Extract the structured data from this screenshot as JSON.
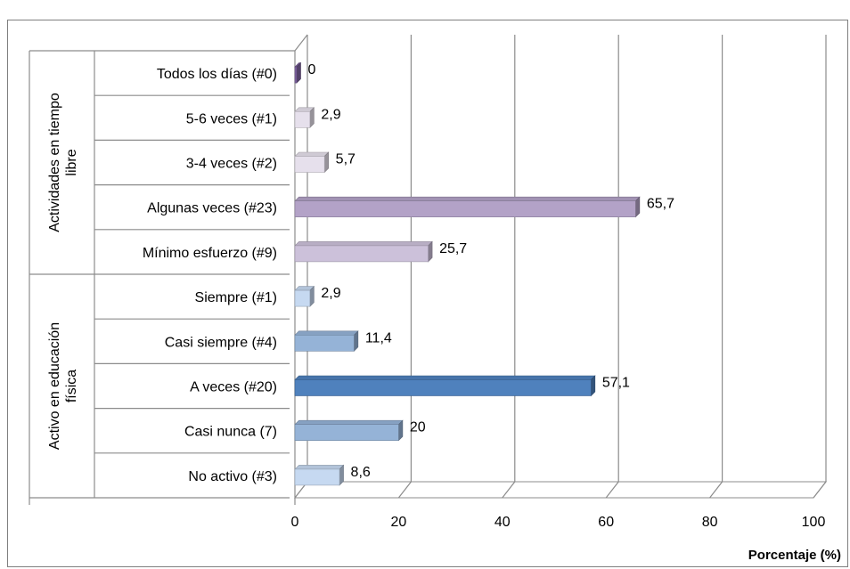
{
  "chart_data": {
    "type": "bar",
    "orientation": "horizontal",
    "title": "",
    "xlabel": "Porcentaje (%)",
    "ylabel": "",
    "xlim": [
      0,
      100
    ],
    "x_ticks": [
      "0",
      "20",
      "40",
      "60",
      "80",
      "100"
    ],
    "grid": true,
    "groups": [
      {
        "label_lines": [
          "Actividades en tiempo",
          "libre"
        ],
        "items": [
          {
            "label": "Todos los días (#0)",
            "value": 0,
            "value_label": "0",
            "color": "#8064a2"
          },
          {
            "label": "5-6 veces (#1)",
            "value": 2.9,
            "value_label": "2,9",
            "color": "#e6e0ec"
          },
          {
            "label": "3-4 veces (#2)",
            "value": 5.7,
            "value_label": "5,7",
            "color": "#e6e0ec"
          },
          {
            "label": "Algunas veces (#23)",
            "value": 65.7,
            "value_label": "65,7",
            "color": "#b3a2c7"
          },
          {
            "label": "Mínimo esfuerzo (#9)",
            "value": 25.7,
            "value_label": "25,7",
            "color": "#ccc1da"
          }
        ]
      },
      {
        "label_lines": [
          "Activo en educación",
          "física"
        ],
        "items": [
          {
            "label": "Siempre (#1)",
            "value": 2.9,
            "value_label": "2,9",
            "color": "#c6d9f1"
          },
          {
            "label": "Casi siempre (#4)",
            "value": 11.4,
            "value_label": "11,4",
            "color": "#95b3d7"
          },
          {
            "label": "A veces (#20)",
            "value": 57.1,
            "value_label": "57,1",
            "color": "#4f81bd"
          },
          {
            "label": "Casi nunca (7)",
            "value": 20,
            "value_label": "20",
            "color": "#95b3d7"
          },
          {
            "label": "No activo (#3)",
            "value": 8.6,
            "value_label": "8,6",
            "color": "#c6d9f1"
          }
        ]
      }
    ]
  }
}
